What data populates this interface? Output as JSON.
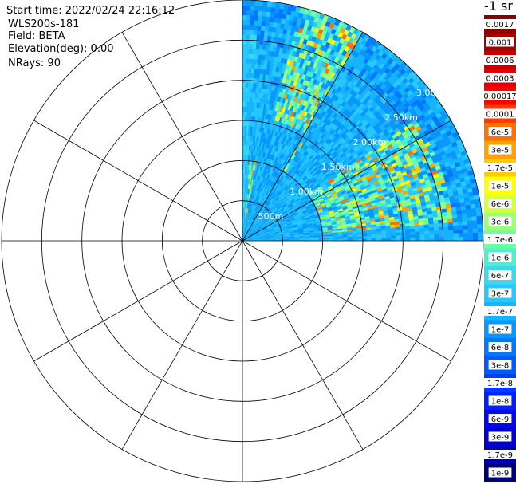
{
  "info": {
    "start_time": "Start time: 2022/02/24 22:16:12",
    "instrument": "WLS200s-181",
    "field": "Field: BETA",
    "elevation": "Elevation(deg): 0.00",
    "nrays": "NRays: 90"
  },
  "colorbar": {
    "unit": "-1 sr",
    "labels": [
      "0.0017",
      "0.001",
      "0.0006",
      "0.0003",
      "0.00017",
      "0.0001",
      "6e-5",
      "3e-5",
      "1.7e-5",
      "1e-5",
      "6e-6",
      "3e-6",
      "1.7e-6",
      "1e-6",
      "6e-7",
      "3e-7",
      "1.7e-7",
      "1e-7",
      "6e-8",
      "3e-8",
      "1.7e-8",
      "1e-8",
      "6e-9",
      "3e-9",
      "1.7e-9",
      "1e-9"
    ],
    "colors": [
      "#8b0000",
      "#a80000",
      "#c40000",
      "#e00000",
      "#ff0000",
      "#ff3a00",
      "#ff7200",
      "#ffa200",
      "#ffcc00",
      "#ffff00",
      "#d8ff3c",
      "#9cff78",
      "#6cffa4",
      "#4cf0d0",
      "#3cd8f0",
      "#28c8ff",
      "#14b4ff",
      "#0a96ff",
      "#0078ff",
      "#005aff",
      "#003cff",
      "#0020ff",
      "#0008f0",
      "#0000d0",
      "#0000aa",
      "#000078"
    ]
  },
  "chart_data": {
    "type": "heatmap",
    "projection": "polar-ppi",
    "field": "BETA",
    "azimuth_range_deg": [
      0,
      90
    ],
    "nrays": 90,
    "range_rings": [
      "500m",
      "1.00km",
      "1.50km",
      "2.00km",
      "2.50km",
      "3.00km"
    ],
    "range_ring_values_km": [
      0.5,
      1.0,
      1.5,
      2.0,
      2.5,
      3.0
    ],
    "max_ring_km": 3.0,
    "spoke_interval_deg": 30,
    "values_note": "beta values shown by color, 1e-9 to 0.0017 sr-1",
    "strong_echo_regions": [
      {
        "azimuth_deg": [
          14,
          30
        ],
        "range_km": [
          1.5,
          3.2
        ],
        "level": "3e-5 to 1e-5"
      },
      {
        "azimuth_deg": [
          55,
          85
        ],
        "range_km": [
          1.0,
          2.6
        ],
        "level": "1e-4 to 3e-5"
      },
      {
        "azimuth_deg": [
          5,
          10
        ],
        "range_km": [
          0.2,
          1.0
        ],
        "level": "1e-5"
      },
      {
        "azimuth_deg": [
          30,
          32
        ],
        "range_km": [
          1.0,
          1.4
        ],
        "level": "1.7e-5"
      }
    ],
    "background_level": "1e-7 to 6e-8"
  }
}
